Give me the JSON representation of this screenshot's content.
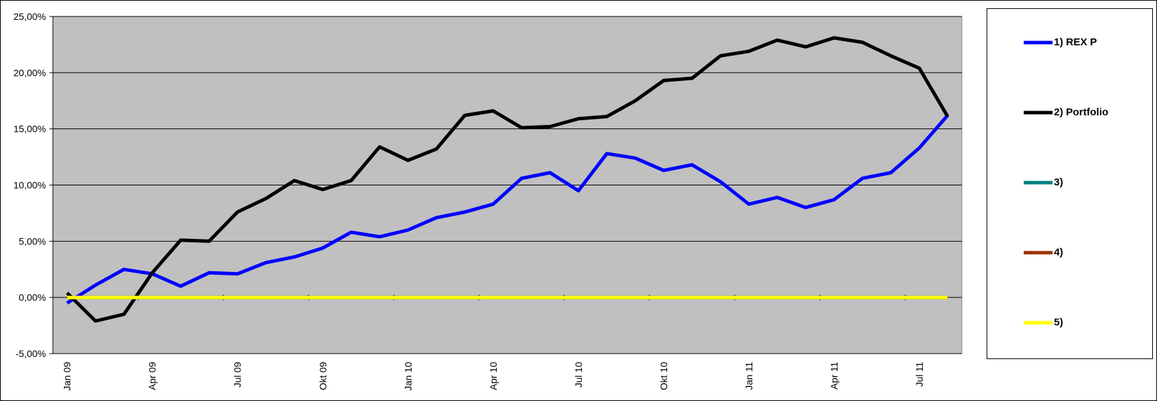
{
  "chart_data": {
    "type": "line",
    "categories": [
      "Jan 09",
      null,
      null,
      "Apr 09",
      null,
      null,
      "Jul 09",
      null,
      null,
      "Okt 09",
      null,
      null,
      "Jan 10",
      null,
      null,
      "Apr 10",
      null,
      null,
      "Jul 10",
      null,
      null,
      "Okt 10",
      null,
      null,
      "Jan 11",
      null,
      null,
      "Apr 11",
      null,
      null,
      "Jul 11",
      null
    ],
    "ylim": [
      -5,
      25
    ],
    "yticks": [
      {
        "value": -5,
        "label": "-5,00%"
      },
      {
        "value": 0,
        "label": "0,00%"
      },
      {
        "value": 5,
        "label": "5,00%"
      },
      {
        "value": 10,
        "label": "10,00%"
      },
      {
        "value": 15,
        "label": "15,00%"
      },
      {
        "value": 20,
        "label": "20,00%"
      },
      {
        "value": 25,
        "label": "25,00%"
      }
    ],
    "grid": true,
    "background": "#c0c0c0",
    "legend": "right",
    "series": [
      {
        "name": "1) REX P",
        "color": "#0000ff",
        "values": [
          -0.5,
          1.1,
          2.5,
          2.1,
          1.0,
          2.2,
          2.1,
          3.1,
          3.6,
          4.4,
          5.8,
          5.4,
          6.0,
          7.1,
          7.6,
          8.3,
          10.6,
          11.1,
          9.5,
          12.8,
          12.4,
          11.3,
          11.8,
          10.3,
          8.3,
          8.9,
          8.0,
          8.7,
          10.6,
          11.1,
          13.3,
          16.2
        ]
      },
      {
        "name": "2) Portfolio",
        "color": "#000000",
        "values": [
          0.4,
          -2.1,
          -1.5,
          2.2,
          5.1,
          5.0,
          7.6,
          8.8,
          10.4,
          9.6,
          10.4,
          13.4,
          12.2,
          13.2,
          16.2,
          16.6,
          15.1,
          15.2,
          15.9,
          16.1,
          17.5,
          19.3,
          19.5,
          21.5,
          21.9,
          22.9,
          22.3,
          23.1,
          22.7,
          21.5,
          20.4,
          16.1
        ]
      },
      {
        "name": "3)",
        "color": "#008080",
        "values": [
          0,
          0,
          0,
          0,
          0,
          0,
          0,
          0,
          0,
          0,
          0,
          0,
          0,
          0,
          0,
          0,
          0,
          0,
          0,
          0,
          0,
          0,
          0,
          0,
          0,
          0,
          0,
          0,
          0,
          0,
          0,
          0
        ]
      },
      {
        "name": "4)",
        "color": "#993300",
        "values": [
          0,
          0,
          0,
          0,
          0,
          0,
          0,
          0,
          0,
          0,
          0,
          0,
          0,
          0,
          0,
          0,
          0,
          0,
          0,
          0,
          0,
          0,
          0,
          0,
          0,
          0,
          0,
          0,
          0,
          0,
          0,
          0
        ]
      },
      {
        "name": "5)",
        "color": "#ffff00",
        "values": [
          0,
          0,
          0,
          0,
          0,
          0,
          0,
          0,
          0,
          0,
          0,
          0,
          0,
          0,
          0,
          0,
          0,
          0,
          0,
          0,
          0,
          0,
          0,
          0,
          0,
          0,
          0,
          0,
          0,
          0,
          0,
          0
        ]
      }
    ]
  }
}
